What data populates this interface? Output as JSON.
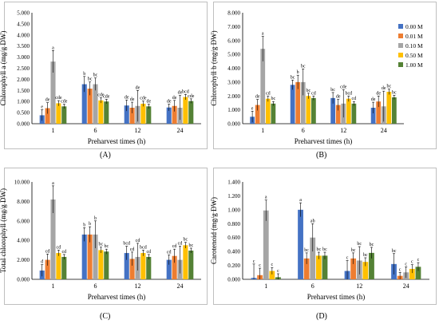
{
  "legend": {
    "entries": [
      "0.00 M",
      "0.01 M",
      "0.10 M",
      "0.50 M",
      "1.00 M"
    ],
    "colors": [
      "#4472c4",
      "#ed7d31",
      "#a5a5a5",
      "#ffc000",
      "#548235"
    ]
  },
  "panel_labels": [
    "(A)",
    "(B)",
    "(C)",
    "(D)"
  ],
  "chart_data": [
    {
      "type": "bar",
      "ylabel": "Chlorophyll a (mg/g DW)",
      "xlabel": "Preharvest times (h)",
      "categories": [
        "1",
        "6",
        "12",
        "24"
      ],
      "ylim": [
        0,
        5
      ],
      "yticks": [
        "0.000",
        "0.500",
        "1.000",
        "1.500",
        "2.000",
        "2.500",
        "3.000",
        "3.500",
        "4.000",
        "4.500",
        "5.000"
      ],
      "series": [
        {
          "name": "0.00 M",
          "values": [
            0.38,
            1.78,
            0.82,
            0.73
          ],
          "errors": [
            0.25,
            0.35,
            0.25,
            0.15
          ],
          "letters": [
            "e",
            "b",
            "de",
            "de"
          ]
        },
        {
          "name": "0.01 M",
          "values": [
            0.7,
            1.58,
            0.72,
            0.8
          ],
          "errors": [
            0.25,
            0.3,
            0.25,
            0.25
          ],
          "letters": [
            "de",
            "bc",
            "de",
            "de"
          ]
        },
        {
          "name": "0.10 M",
          "values": [
            2.8,
            1.78,
            0.8,
            0.72
          ],
          "errors": [
            0.5,
            0.28,
            0.7,
            0.55
          ],
          "letters": [
            "a",
            "bc",
            "de",
            "de"
          ]
        },
        {
          "name": "0.50 M",
          "values": [
            0.92,
            1.05,
            0.9,
            1.2
          ],
          "errors": [
            0.12,
            0.12,
            0.12,
            0.12
          ],
          "letters": [
            "cde",
            "cde",
            "cde",
            "bcd"
          ]
        },
        {
          "name": "1.00 M",
          "values": [
            0.78,
            1.0,
            0.78,
            1.02
          ],
          "errors": [
            0.1,
            0.1,
            0.1,
            0.1
          ],
          "letters": [
            "cde",
            "cde",
            "de",
            "cde"
          ]
        }
      ]
    },
    {
      "type": "bar",
      "ylabel": "Chlorophyll b (mg/g DW)",
      "xlabel": "Preharvest times (h)",
      "categories": [
        "1",
        "6",
        "12",
        "24"
      ],
      "ylim": [
        0,
        8
      ],
      "yticks": [
        "0.000",
        "1.000",
        "2.000",
        "3.000",
        "4.000",
        "5.000",
        "6.000",
        "7.000",
        "8.000"
      ],
      "series": [
        {
          "name": "0.00 M",
          "values": [
            0.5,
            2.8,
            1.85,
            1.15
          ],
          "errors": [
            0.4,
            0.35,
            0.4,
            0.4
          ],
          "letters": [
            "e",
            "bc",
            "bc",
            "de"
          ]
        },
        {
          "name": "0.01 M",
          "values": [
            1.35,
            3.0,
            1.35,
            1.6
          ],
          "errors": [
            0.4,
            0.5,
            0.4,
            0.4
          ],
          "letters": [
            "de",
            "b",
            "de",
            "de"
          ]
        },
        {
          "name": "0.10 M",
          "values": [
            5.4,
            3.0,
            1.45,
            1.25
          ],
          "errors": [
            0.9,
            0.95,
            1.0,
            1.1
          ],
          "letters": [
            "a",
            "bc",
            "cde",
            "de"
          ]
        },
        {
          "name": "0.50 M",
          "values": [
            1.8,
            2.0,
            1.8,
            2.3
          ],
          "errors": [
            0.2,
            0.2,
            0.2,
            0.2
          ],
          "letters": [
            "cd",
            "bc",
            "bcd",
            "bc"
          ]
        },
        {
          "name": "1.00 M",
          "values": [
            1.45,
            1.85,
            1.45,
            1.9
          ],
          "errors": [
            0.15,
            0.15,
            0.15,
            0.15
          ],
          "letters": [
            "bc",
            "cd",
            "cd",
            "bc"
          ]
        }
      ]
    },
    {
      "type": "bar",
      "ylabel": "Total chlorophyll (mg/g DW)",
      "xlabel": "Preharvest times (h)",
      "categories": [
        "1",
        "6",
        "12",
        "24"
      ],
      "ylim": [
        0,
        10
      ],
      "yticks": [
        "0.000",
        "2.000",
        "4.000",
        "6.000",
        "8.000",
        "10.000"
      ],
      "series": [
        {
          "name": "0.00 M",
          "values": [
            0.9,
            4.6,
            2.7,
            2.0
          ],
          "errors": [
            0.6,
            0.7,
            0.7,
            0.5
          ],
          "letters": [
            "d",
            "b",
            "bcd",
            "cd"
          ]
        },
        {
          "name": "0.01 M",
          "values": [
            2.0,
            4.6,
            2.1,
            2.4
          ],
          "errors": [
            0.6,
            0.8,
            0.7,
            0.7
          ],
          "letters": [
            "cd",
            "b",
            "cd",
            "cd"
          ]
        },
        {
          "name": "0.10 M",
          "values": [
            8.2,
            4.6,
            2.3,
            2.0
          ],
          "errors": [
            1.4,
            1.4,
            1.4,
            1.4
          ],
          "letters": [
            "a",
            "b",
            "cd",
            "cd"
          ]
        },
        {
          "name": "0.50 M",
          "values": [
            2.7,
            3.0,
            2.7,
            3.5
          ],
          "errors": [
            0.3,
            0.3,
            0.3,
            0.3
          ],
          "letters": [
            "cd",
            "bc",
            "bcd",
            "bc"
          ]
        },
        {
          "name": "1.00 M",
          "values": [
            2.3,
            2.85,
            2.3,
            2.95
          ],
          "errors": [
            0.25,
            0.25,
            0.25,
            0.25
          ],
          "letters": [
            "cd",
            "bc",
            "cd",
            "bc"
          ]
        }
      ]
    },
    {
      "type": "bar",
      "ylabel": "Carotenoid (mg/g DW)",
      "xlabel": "Preharvest times (h)",
      "categories": [
        "1",
        "6",
        "12",
        "24"
      ],
      "ylim": [
        0,
        1.4
      ],
      "yticks": [
        "0.000",
        "0.200",
        "0.400",
        "0.600",
        "0.800",
        "1.000",
        "1.200",
        "1.400"
      ],
      "series": [
        {
          "name": "0.00 M",
          "values": [
            0.02,
            1.0,
            0.12,
            0.22
          ],
          "errors": [
            0.2,
            0.1,
            0.15,
            0.15
          ],
          "letters": [
            "c",
            "a",
            "c",
            "bc"
          ]
        },
        {
          "name": "0.01 M",
          "values": [
            0.06,
            0.3,
            0.3,
            0.05
          ],
          "errors": [
            0.1,
            0.08,
            0.08,
            0.05
          ],
          "letters": [
            "c",
            "bc",
            "bc",
            "c"
          ]
        },
        {
          "name": "0.10 M",
          "values": [
            0.99,
            0.6,
            0.27,
            0.1
          ],
          "errors": [
            0.15,
            0.2,
            0.2,
            0.08
          ],
          "letters": [
            "a",
            "ab",
            "bc",
            "c"
          ]
        },
        {
          "name": "0.50 M",
          "values": [
            0.12,
            0.34,
            0.25,
            0.15
          ],
          "errors": [
            0.05,
            0.05,
            0.06,
            0.06
          ],
          "letters": [
            "c",
            "bc",
            "bc",
            "c"
          ]
        },
        {
          "name": "1.00 M",
          "values": [
            0.03,
            0.34,
            0.38,
            0.18
          ],
          "errors": [
            0.05,
            0.05,
            0.08,
            0.06
          ],
          "letters": [
            "c",
            "bc",
            "bc",
            "c"
          ]
        }
      ]
    }
  ]
}
